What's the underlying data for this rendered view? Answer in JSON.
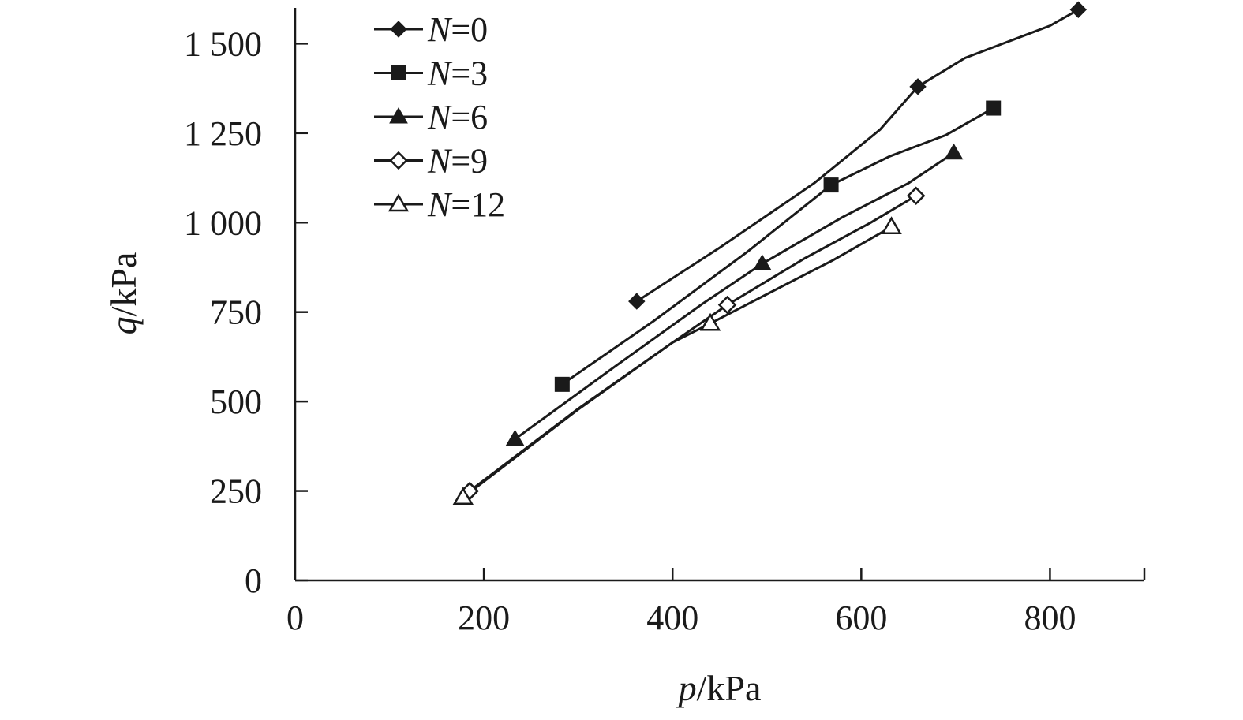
{
  "chart_data": {
    "type": "line",
    "xlabel": {
      "var": "p",
      "unit": "/kPa"
    },
    "ylabel": {
      "var": "q",
      "unit": "/kPa"
    },
    "xlim": [
      0,
      900
    ],
    "ylim": [
      0,
      1600
    ],
    "xticks": [
      0,
      200,
      400,
      600,
      800
    ],
    "xtick_labels": [
      "0",
      "200",
      "400",
      "600",
      "800"
    ],
    "yticks": [
      0,
      250,
      500,
      750,
      1000,
      1250,
      1500
    ],
    "ytick_labels": [
      "0",
      "250",
      "500",
      "750",
      "1 000",
      "1 250",
      "1 500"
    ],
    "grid": false,
    "legend_position": "top-left",
    "series": [
      {
        "name": "N=0",
        "label_var": "N",
        "label_rest": "=0",
        "marker": "diamond-filled",
        "x": [
          362,
          660,
          830
        ],
        "y": [
          780,
          1380,
          1595
        ],
        "curve_x": [
          362,
          450,
          550,
          620,
          660,
          710,
          760,
          800,
          830
        ],
        "curve_y": [
          780,
          930,
          1110,
          1260,
          1380,
          1460,
          1510,
          1550,
          1595
        ]
      },
      {
        "name": "N=3",
        "label_var": "N",
        "label_rest": "=3",
        "marker": "square-filled",
        "x": [
          283,
          568,
          740
        ],
        "y": [
          548,
          1105,
          1320
        ],
        "curve_x": [
          283,
          380,
          480,
          568,
          630,
          690,
          740
        ],
        "curve_y": [
          548,
          725,
          920,
          1105,
          1185,
          1245,
          1320
        ]
      },
      {
        "name": "N=6",
        "label_var": "N",
        "label_rest": "=6",
        "marker": "triangle-filled",
        "x": [
          233,
          495,
          698
        ],
        "y": [
          395,
          885,
          1195
        ],
        "curve_x": [
          233,
          340,
          430,
          495,
          580,
          650,
          698
        ],
        "curve_y": [
          395,
          600,
          770,
          885,
          1015,
          1110,
          1195
        ]
      },
      {
        "name": "N=9",
        "label_var": "N",
        "label_rest": "=9",
        "marker": "diamond-open",
        "x": [
          185,
          458,
          658
        ],
        "y": [
          250,
          770,
          1075
        ],
        "curve_x": [
          185,
          300,
          400,
          458,
          540,
          610,
          658
        ],
        "curve_y": [
          250,
          480,
          665,
          770,
          900,
          1000,
          1075
        ]
      },
      {
        "name": "N=12",
        "label_var": "N",
        "label_rest": "=12",
        "marker": "triangle-open",
        "x": [
          178,
          440,
          632
        ],
        "y": [
          232,
          718,
          988
        ],
        "curve_x": [
          178,
          300,
          400,
          440,
          500,
          570,
          632
        ],
        "curve_y": [
          232,
          478,
          665,
          718,
          800,
          895,
          988
        ]
      }
    ]
  }
}
